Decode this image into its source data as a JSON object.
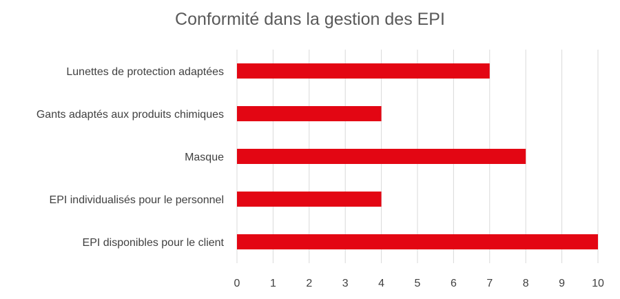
{
  "chart_data": {
    "type": "bar",
    "orientation": "horizontal",
    "title": "Conformité dans la gestion des EPI",
    "categories": [
      "Lunettes de protection adaptées",
      "Gants adaptés aux produits chimiques",
      "Masque",
      "EPI individualisés pour le personnel",
      "EPI disponibles pour le client"
    ],
    "values": [
      7,
      4,
      8,
      4,
      10
    ],
    "xlim": [
      0,
      10
    ],
    "xticks": [
      "0",
      "1",
      "2",
      "3",
      "4",
      "5",
      "6",
      "7",
      "8",
      "9",
      "10"
    ],
    "grid": "vertical",
    "legend": "none",
    "bar_color": "#E30613",
    "grid_color": "#D9D9D9"
  }
}
